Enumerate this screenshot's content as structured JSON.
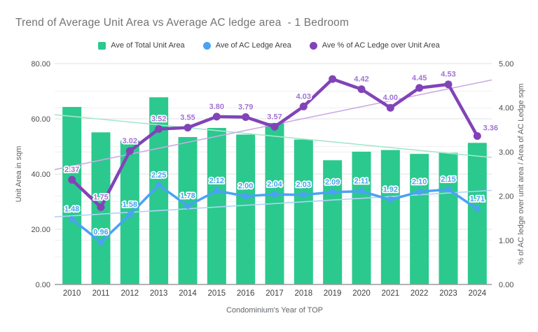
{
  "title": "Trend of Average Unit Area vs Average AC ledge area  - 1 Bedroom",
  "legend": [
    {
      "label": "Ave of Total Unit Area",
      "marker": "square",
      "color": "#2bc98e"
    },
    {
      "label": "Ave of AC Ledge Area",
      "marker": "circle",
      "color": "#4aa2f2"
    },
    {
      "label": "Ave % of AC Ledge over Unit Area",
      "marker": "circle",
      "color": "#8243b8"
    }
  ],
  "chart_data": {
    "type": "combo (bar + 2 lines + linear trendlines)",
    "title": "Trend of Average Unit Area vs Average AC ledge area  - 1 Bedroom",
    "x_axis": {
      "title": "Condominium's Year of TOP",
      "categories": [
        "2010",
        "2011",
        "2012",
        "2013",
        "2014",
        "2015",
        "2016",
        "2017",
        "2018",
        "2019",
        "2020",
        "2021",
        "2022",
        "2023",
        "2024"
      ]
    },
    "left_axis": {
      "title": "Unit Area in sqm",
      "min": 0,
      "max": 80,
      "major_ticks": [
        0,
        20,
        40,
        60,
        80
      ],
      "tick_labels": [
        "0.00",
        "20.00",
        "40.00",
        "60.00",
        "80.00"
      ],
      "minor_tick_step": 10
    },
    "right_axis": {
      "title": "% of AC ledge over unit area / Area of AC Ledge sqm",
      "min": 0,
      "max": 5,
      "major_ticks": [
        0,
        1,
        2,
        3,
        4,
        5
      ],
      "tick_labels": [
        "0.00",
        "1.00",
        "2.00",
        "3.00",
        "4.00",
        "5.00"
      ]
    },
    "series": [
      {
        "name": "Ave of Total Unit Area",
        "type": "bar",
        "axis": "left",
        "color": "#2bc98e",
        "values_estimated_from_pixels": true,
        "values": [
          64.3,
          55.1,
          52.1,
          67.8,
          53.4,
          56.7,
          54.3,
          58.5,
          52.5,
          45.0,
          48.1,
          48.7,
          47.3,
          47.7,
          51.3
        ],
        "data_labels": null,
        "trendline": {
          "start_value": 61.5,
          "end_value": 46.0,
          "color": "#a5e7cc"
        }
      },
      {
        "name": "Ave of AC Ledge Area",
        "type": "line",
        "axis": "right",
        "color": "#4aa2f2",
        "label_color": "#4aa2f2",
        "values": [
          1.48,
          0.96,
          1.58,
          2.25,
          1.78,
          2.12,
          2.0,
          2.04,
          2.03,
          2.09,
          2.11,
          1.92,
          2.1,
          2.15,
          1.71
        ],
        "data_labels": [
          "1.48",
          "0.96",
          "1.58",
          "2.25",
          "1.78",
          "2.12",
          "2.00",
          "2.04",
          "2.03",
          "2.09",
          "2.11",
          "1.92",
          "2.10",
          "2.15",
          "1.71"
        ],
        "trendline": {
          "start_value": 1.53,
          "end_value": 2.13,
          "color": "#afd3f8"
        }
      },
      {
        "name": "Ave % of AC Ledge over Unit Area",
        "type": "line",
        "axis": "right",
        "color": "#8243b8",
        "label_color": "#a173d2",
        "values": [
          2.37,
          1.75,
          3.02,
          3.52,
          3.55,
          3.8,
          3.79,
          3.57,
          4.03,
          4.65,
          4.42,
          4.0,
          4.45,
          4.53,
          3.36
        ],
        "data_labels": [
          "2.37",
          "1.75",
          "3.02",
          "3.52",
          "3.55",
          "3.80",
          "3.79",
          "3.57",
          "4.03",
          "",
          "4.42",
          "4.00",
          "4.45",
          "4.53",
          "3.36"
        ],
        "trendline": {
          "start_value": 2.6,
          "end_value": 4.63,
          "color": "#cbaae6"
        }
      }
    ],
    "grid": {
      "major_color": "#e2e2e2",
      "minor_color": "#f1f1f1",
      "baseline_color": "#9a9a9a"
    }
  }
}
